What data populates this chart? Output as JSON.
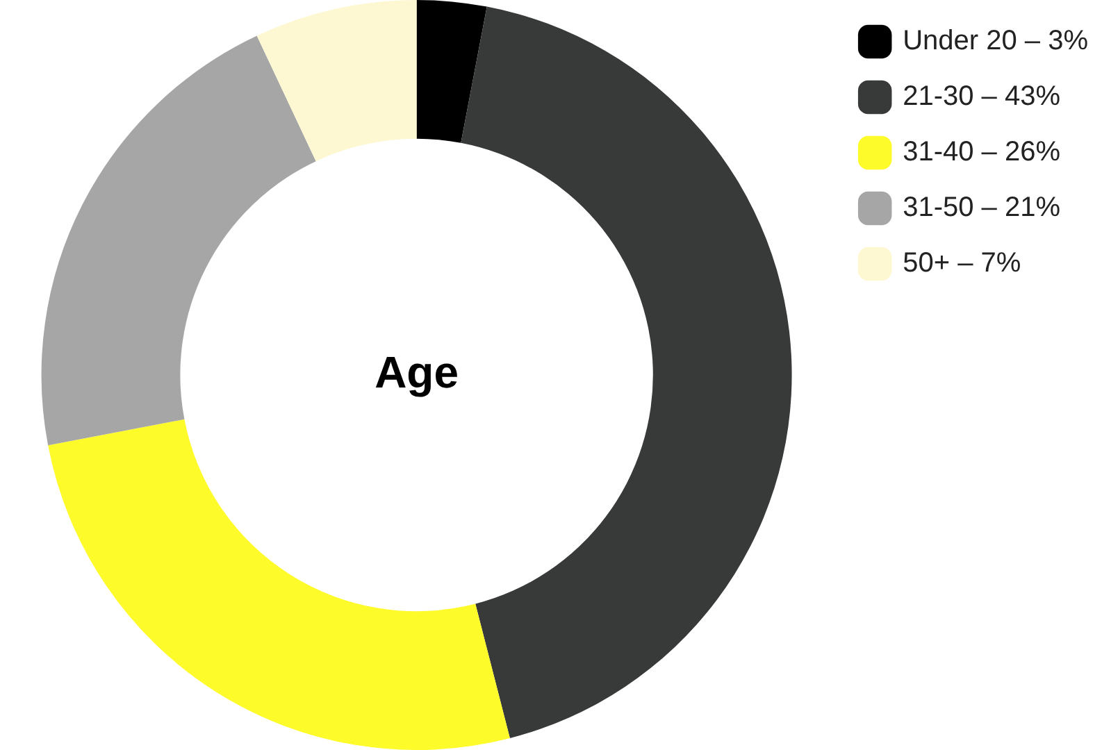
{
  "chart_data": {
    "type": "donut",
    "title": "Age",
    "categories": [
      "Under 20 – 3%",
      "21-30 – 43%",
      "31-40 – 26%",
      "31-50 – 21%",
      "50+ – 7%"
    ],
    "values": [
      3,
      43,
      26,
      21,
      7
    ],
    "colors": [
      "#000000",
      "#373a39",
      "#fefb2a",
      "#a6a6a6",
      "#fdf8d2"
    ],
    "legend": "top right"
  }
}
